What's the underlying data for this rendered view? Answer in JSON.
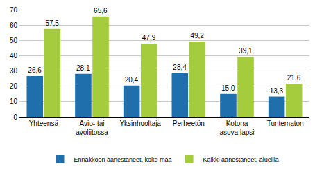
{
  "chart_data": {
    "type": "bar",
    "categories": [
      "Yhteensä",
      "Avio- tai\navoliitossa",
      "Yksinhuoltaja",
      "Perheetön",
      "Kotona\nasuva lapsi",
      "Tuntematon"
    ],
    "series": [
      {
        "name": "Ennakkoon äänestäneet, koko maa",
        "color": "#1f6fad",
        "values": [
          26.6,
          28.1,
          20.4,
          28.4,
          15.0,
          13.3
        ],
        "value_labels": [
          "26,6",
          "28,1",
          "20,4",
          "28,4",
          "15,0",
          "13,3"
        ]
      },
      {
        "name": "Kaikki äänestäneet, alueilla",
        "color": "#a4cc3c",
        "values": [
          57.5,
          65.6,
          47.9,
          49.2,
          39.1,
          21.6
        ],
        "value_labels": [
          "57,5",
          "65,6",
          "47,9",
          "49,2",
          "39,1",
          "21,6"
        ]
      }
    ],
    "ylim": [
      0,
      70
    ],
    "yticks": [
      0,
      10,
      20,
      30,
      40,
      50,
      60,
      70
    ],
    "grid": true,
    "legend": "bottom",
    "data_labels": true
  }
}
